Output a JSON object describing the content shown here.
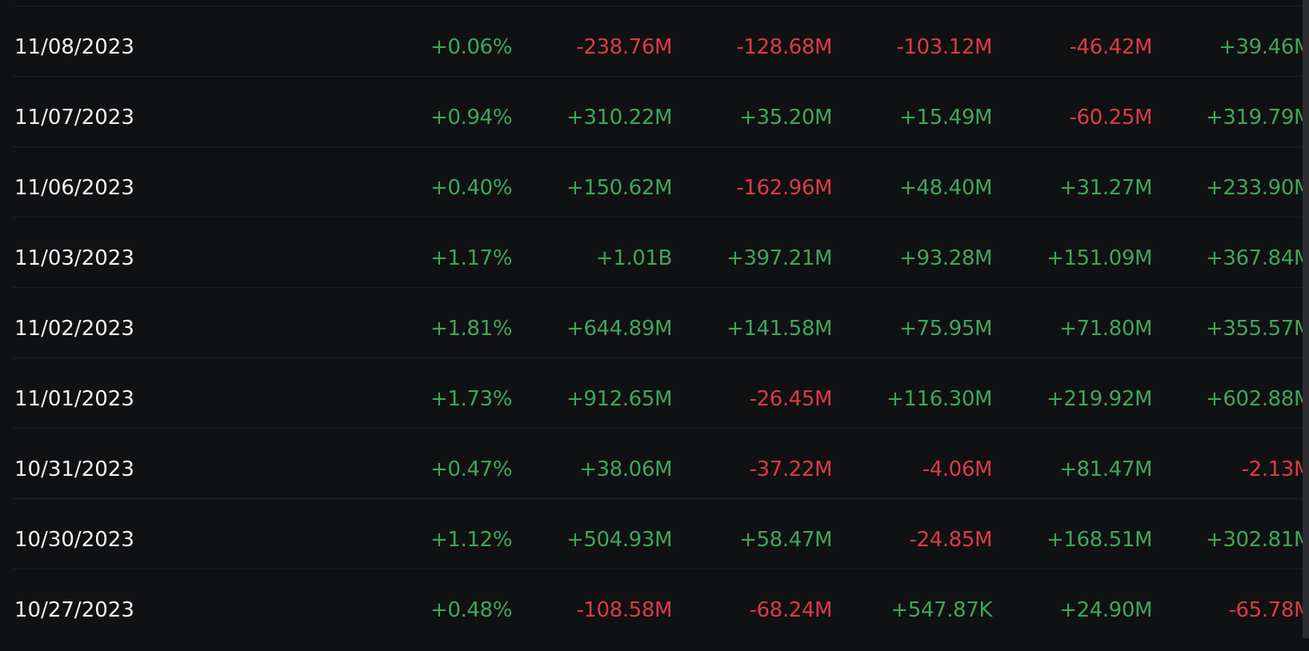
{
  "colors": {
    "background": "#101113",
    "positive": "#3fa65a",
    "negative": "#dc3a48",
    "text": "#f3f3f3"
  },
  "rows": [
    {
      "date": "11/08/2023",
      "values": [
        "+0.06%",
        "-238.76M",
        "-128.68M",
        "-103.12M",
        "-46.42M",
        "+39.46M"
      ]
    },
    {
      "date": "11/07/2023",
      "values": [
        "+0.94%",
        "+310.22M",
        "+35.20M",
        "+15.49M",
        "-60.25M",
        "+319.79M"
      ]
    },
    {
      "date": "11/06/2023",
      "values": [
        "+0.40%",
        "+150.62M",
        "-162.96M",
        "+48.40M",
        "+31.27M",
        "+233.90M"
      ]
    },
    {
      "date": "11/03/2023",
      "values": [
        "+1.17%",
        "+1.01B",
        "+397.21M",
        "+93.28M",
        "+151.09M",
        "+367.84M"
      ]
    },
    {
      "date": "11/02/2023",
      "values": [
        "+1.81%",
        "+644.89M",
        "+141.58M",
        "+75.95M",
        "+71.80M",
        "+355.57M"
      ]
    },
    {
      "date": "11/01/2023",
      "values": [
        "+1.73%",
        "+912.65M",
        "-26.45M",
        "+116.30M",
        "+219.92M",
        "+602.88M"
      ]
    },
    {
      "date": "10/31/2023",
      "values": [
        "+0.47%",
        "+38.06M",
        "-37.22M",
        "-4.06M",
        "+81.47M",
        "-2.13M"
      ]
    },
    {
      "date": "10/30/2023",
      "values": [
        "+1.12%",
        "+504.93M",
        "+58.47M",
        "-24.85M",
        "+168.51M",
        "+302.81M"
      ]
    },
    {
      "date": "10/27/2023",
      "values": [
        "+0.48%",
        "-108.58M",
        "-68.24M",
        "+547.87K",
        "+24.90M",
        "-65.78M"
      ]
    }
  ]
}
